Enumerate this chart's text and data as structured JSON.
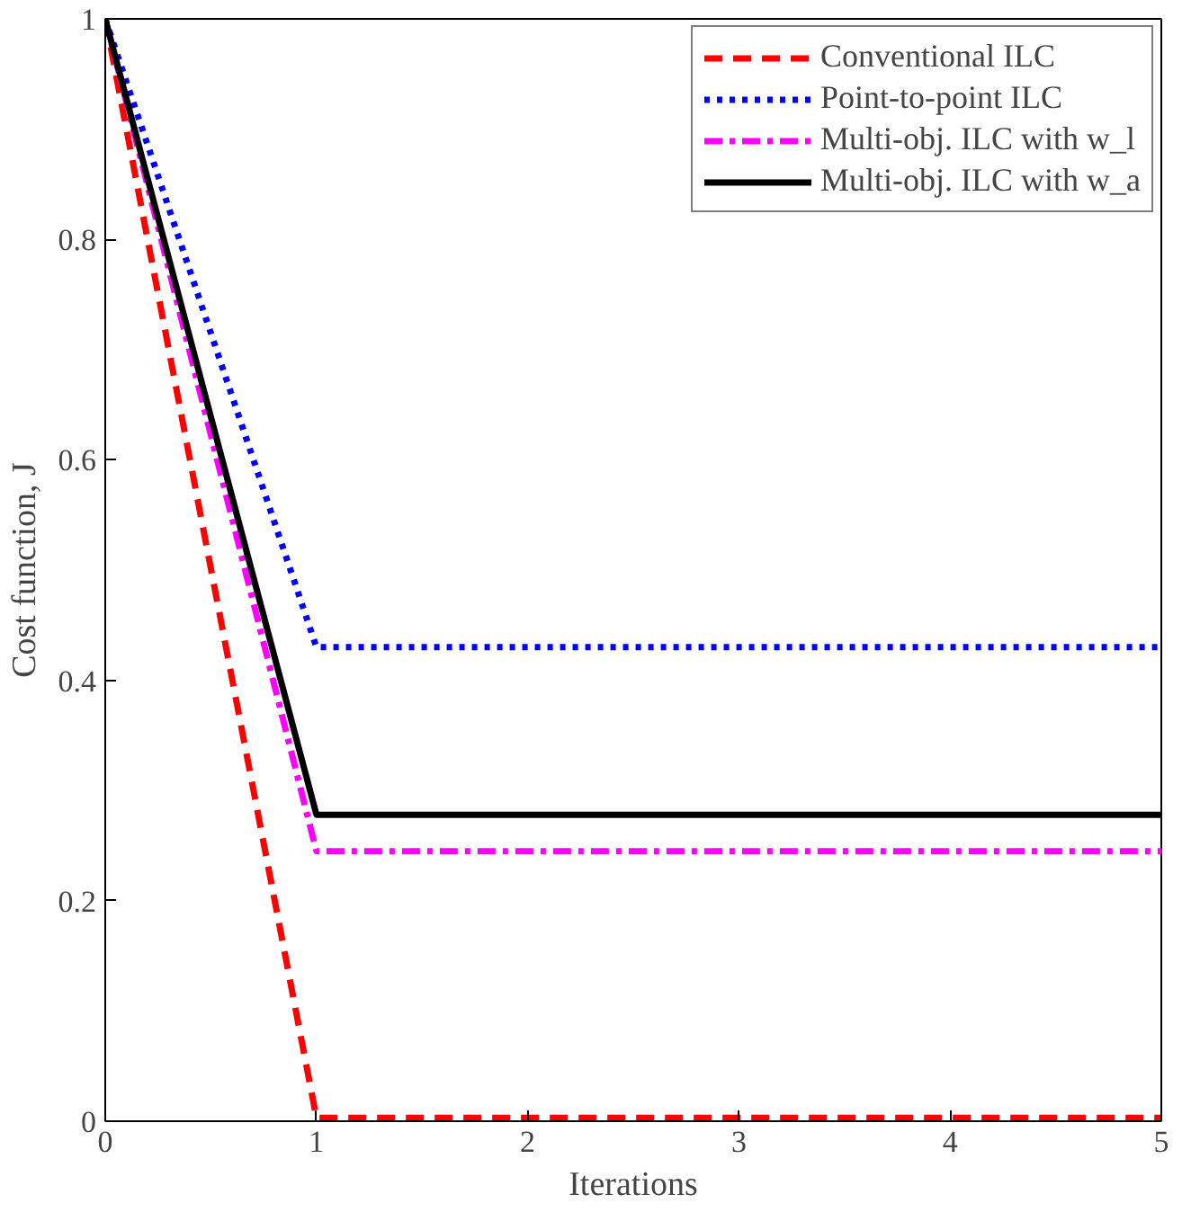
{
  "chart_data": {
    "type": "line",
    "xlabel": "Iterations",
    "ylabel": "Cost function, J",
    "x": [
      0,
      1,
      2,
      3,
      4,
      5
    ],
    "series": [
      {
        "name": "Conventional ILC",
        "color": "#ff0000",
        "line_style": "dashed",
        "values": [
          1,
          0.003,
          0.003,
          0.003,
          0.003,
          0.003
        ]
      },
      {
        "name": "Point-to-point ILC",
        "color": "#0000ff",
        "line_style": "dotted",
        "values": [
          1,
          0.43,
          0.43,
          0.43,
          0.43,
          0.43
        ]
      },
      {
        "name": "Multi-obj. ILC with w_l",
        "color": "#ff00ff",
        "line_style": "dashdot",
        "values": [
          1,
          0.245,
          0.245,
          0.245,
          0.245,
          0.245
        ]
      },
      {
        "name": "Multi-obj. ILC with w_a",
        "color": "#000000",
        "line_style": "solid",
        "values": [
          1,
          0.278,
          0.278,
          0.278,
          0.278,
          0.278
        ]
      }
    ],
    "xlim": [
      0,
      5
    ],
    "ylim": [
      0,
      1
    ],
    "xticks": [
      0,
      1,
      2,
      3,
      4,
      5
    ],
    "yticks": [
      0,
      0.2,
      0.4,
      0.6,
      0.8,
      1
    ],
    "grid": false,
    "legend": "top right",
    "marker": "none"
  }
}
